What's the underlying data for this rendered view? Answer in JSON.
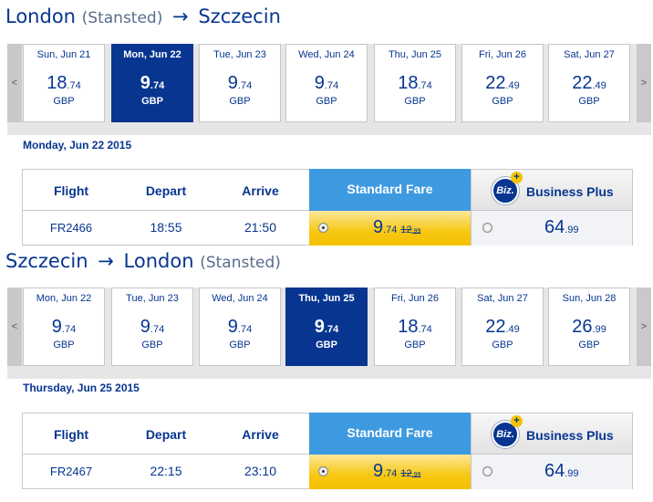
{
  "outbound": {
    "from": "London",
    "from_sub": "(Stansted)",
    "arrow": "→",
    "to": "Szczecin",
    "to_sub": "",
    "nav_prev": "<",
    "nav_next": ">",
    "days": [
      {
        "label": "Sun, Jun 21",
        "price": "18",
        "cents": ".74",
        "currency": "GBP",
        "selected": false
      },
      {
        "label": "Mon, Jun 22",
        "price": "9",
        "cents": ".74",
        "currency": "GBP",
        "selected": true
      },
      {
        "label": "Tue, Jun 23",
        "price": "9",
        "cents": ".74",
        "currency": "GBP",
        "selected": false
      },
      {
        "label": "Wed, Jun 24",
        "price": "9",
        "cents": ".74",
        "currency": "GBP",
        "selected": false
      },
      {
        "label": "Thu, Jun 25",
        "price": "18",
        "cents": ".74",
        "currency": "GBP",
        "selected": false
      },
      {
        "label": "Fri, Jun 26",
        "price": "22",
        "cents": ".49",
        "currency": "GBP",
        "selected": false
      },
      {
        "label": "Sat, Jun 27",
        "price": "22",
        "cents": ".49",
        "currency": "GBP",
        "selected": false
      }
    ],
    "date_heading": "Monday, Jun 22 2015",
    "table": {
      "col_flight": "Flight",
      "col_depart": "Depart",
      "col_arrive": "Arrive",
      "standard_fare": "Standard Fare",
      "biz_badge": "Biz.",
      "biz_plus": "+",
      "business_plus": "Business Plus",
      "flight": "FR2466",
      "depart": "18:55",
      "arrive": "21:50",
      "std_price": "9",
      "std_cents": ".74",
      "std_old_price": "12",
      "std_old_cents": ".99",
      "biz_price": "64",
      "biz_cents": ".99"
    }
  },
  "inbound": {
    "from": "Szczecin",
    "from_sub": "",
    "arrow": "→",
    "to": "London",
    "to_sub": "(Stansted)",
    "nav_prev": "<",
    "nav_next": ">",
    "days": [
      {
        "label": "Mon, Jun 22",
        "price": "9",
        "cents": ".74",
        "currency": "GBP",
        "selected": false
      },
      {
        "label": "Tue, Jun 23",
        "price": "9",
        "cents": ".74",
        "currency": "GBP",
        "selected": false
      },
      {
        "label": "Wed, Jun 24",
        "price": "9",
        "cents": ".74",
        "currency": "GBP",
        "selected": false
      },
      {
        "label": "Thu, Jun 25",
        "price": "9",
        "cents": ".74",
        "currency": "GBP",
        "selected": true
      },
      {
        "label": "Fri, Jun 26",
        "price": "18",
        "cents": ".74",
        "currency": "GBP",
        "selected": false
      },
      {
        "label": "Sat, Jun 27",
        "price": "22",
        "cents": ".49",
        "currency": "GBP",
        "selected": false
      },
      {
        "label": "Sun, Jun 28",
        "price": "26",
        "cents": ".99",
        "currency": "GBP",
        "selected": false
      }
    ],
    "date_heading": "Thursday, Jun 25 2015",
    "table": {
      "col_flight": "Flight",
      "col_depart": "Depart",
      "col_arrive": "Arrive",
      "standard_fare": "Standard Fare",
      "biz_badge": "Biz.",
      "biz_plus": "+",
      "business_plus": "Business Plus",
      "flight": "FR2467",
      "depart": "22:15",
      "arrive": "23:10",
      "std_price": "9",
      "std_cents": ".74",
      "std_old_price": "12",
      "std_old_cents": ".99",
      "biz_price": "64",
      "biz_cents": ".99"
    }
  },
  "colors": {
    "brand_blue": "#073590",
    "standard_blue": "#3e9ae0",
    "fare_yellow": "#f4c000"
  }
}
